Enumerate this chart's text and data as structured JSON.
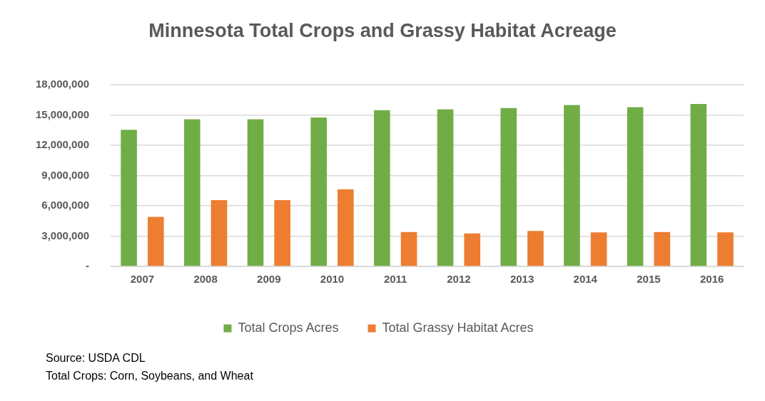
{
  "chart_data": {
    "type": "bar",
    "title": "Minnesota Total Crops and Grassy Habitat Acreage",
    "categories": [
      "2007",
      "2008",
      "2009",
      "2010",
      "2011",
      "2012",
      "2013",
      "2014",
      "2015",
      "2016"
    ],
    "series": [
      {
        "name": "Total Crops Acres",
        "color": "#70ad47",
        "values": [
          13540000,
          14570000,
          14570000,
          14760000,
          15470000,
          15570000,
          15680000,
          15990000,
          15780000,
          16100000
        ]
      },
      {
        "name": "Total Grassy Habitat Acres",
        "color": "#ed7d31",
        "values": [
          4900000,
          6570000,
          6570000,
          7640000,
          3410000,
          3270000,
          3520000,
          3370000,
          3410000,
          3370000
        ]
      }
    ],
    "ylim": [
      0,
      18000000
    ],
    "yticks": [
      {
        "value": 0,
        "label": "-"
      },
      {
        "value": 3000000,
        "label": "3,000,000"
      },
      {
        "value": 6000000,
        "label": "6,000,000"
      },
      {
        "value": 9000000,
        "label": "9,000,000"
      },
      {
        "value": 12000000,
        "label": "12,000,000"
      },
      {
        "value": 15000000,
        "label": "15,000,000"
      },
      {
        "value": 18000000,
        "label": "18,000,000"
      }
    ],
    "grid": "y",
    "legend": "bottom",
    "annotations": [
      "Source: USDA CDL",
      "Total Crops: Corn, Soybeans, and Wheat"
    ]
  }
}
